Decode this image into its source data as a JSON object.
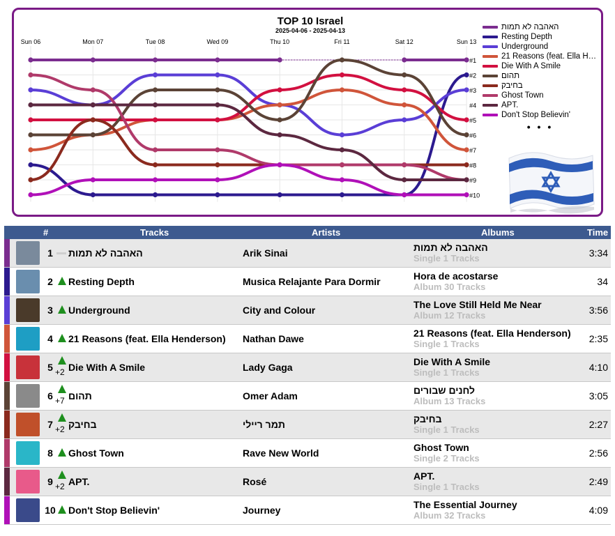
{
  "chart_data": {
    "type": "line",
    "title": "TOP 10 Israel",
    "subtitle": "2025-04-06 - 2025-04-13",
    "x": [
      "Sun 06",
      "Mon 07",
      "Tue 08",
      "Wed 09",
      "Thu 10",
      "Fri 11",
      "Sat 12",
      "Sun 13"
    ],
    "rank_labels": [
      "#1",
      "#2",
      "#3",
      "#4",
      "#5",
      "#6",
      "#7",
      "#8",
      "#9",
      "#10"
    ],
    "ylim": [
      1,
      10
    ],
    "legend_more": "• • •",
    "series": [
      {
        "name": "האהבה לא תמות",
        "color": "#7b2d8f",
        "values": [
          1,
          1,
          1,
          1,
          1,
          null,
          1,
          1
        ]
      },
      {
        "name": "Resting Depth",
        "color": "#2c1a8f",
        "values": [
          8,
          10,
          10,
          10,
          10,
          10,
          10,
          2
        ]
      },
      {
        "name": "Underground",
        "color": "#5a3ed6",
        "values": [
          3,
          4,
          2,
          2,
          4,
          6,
          5,
          3
        ]
      },
      {
        "name": "21 Reasons (feat. Ella Henderson)",
        "color": "#d0553a",
        "values": [
          7,
          6,
          5,
          5,
          4,
          3,
          4,
          7
        ]
      },
      {
        "name": "Die With A Smile",
        "color": "#d21040",
        "values": [
          5,
          5,
          5,
          5,
          3,
          2,
          3,
          5
        ]
      },
      {
        "name": "תהום",
        "color": "#5b4336",
        "values": [
          6,
          6,
          3,
          3,
          5,
          1,
          2,
          6
        ]
      },
      {
        "name": "בחיבק",
        "color": "#8b2a1e",
        "values": [
          9,
          5,
          8,
          8,
          8,
          8,
          8,
          8
        ]
      },
      {
        "name": "Ghost Town",
        "color": "#b03a6a",
        "values": [
          2,
          3,
          7,
          7,
          8,
          8,
          8,
          9
        ]
      },
      {
        "name": "APT.",
        "color": "#5c2840",
        "values": [
          4,
          4,
          4,
          4,
          6,
          7,
          9,
          9
        ]
      },
      {
        "name": "Don't Stop Believin'",
        "color": "#b010b8",
        "values": [
          10,
          9,
          9,
          9,
          8,
          9,
          10,
          10
        ]
      }
    ]
  },
  "table": {
    "headers": {
      "rank": "#",
      "tracks": "Tracks",
      "artists": "Artists",
      "albums": "Albums",
      "time": "Time"
    },
    "rows": [
      {
        "rank": "1",
        "trend": "same",
        "delta": "",
        "track": "האהבה לא תמות",
        "artist": "Arik Sinai",
        "album": "האהבה לא תמות",
        "album_sub": "Single 1 Tracks",
        "time": "3:34",
        "bar": "#7b2d8f",
        "cover": "#7a8a9c"
      },
      {
        "rank": "2",
        "trend": "up",
        "delta": "",
        "track": "Resting Depth",
        "artist": "Musica Relajante Para Dormir",
        "album": "Hora de acostarse",
        "album_sub": "Album 30 Tracks",
        "time": "34",
        "bar": "#2c1a8f",
        "cover": "#6a8eae"
      },
      {
        "rank": "3",
        "trend": "up",
        "delta": "",
        "track": "Underground",
        "artist": "City and Colour",
        "album": "The Love Still Held Me Near",
        "album_sub": "Album 12 Tracks",
        "time": "3:56",
        "bar": "#5a3ed6",
        "cover": "#4a3a2a"
      },
      {
        "rank": "4",
        "trend": "up",
        "delta": "",
        "track": "21 Reasons (feat. Ella Henderson)",
        "artist": "Nathan Dawe",
        "album": "21 Reasons (feat. Ella Henderson)",
        "album_sub": "Single 1 Tracks",
        "time": "2:35",
        "bar": "#d0553a",
        "cover": "#1e9ec4"
      },
      {
        "rank": "5",
        "trend": "up",
        "delta": "+2",
        "track": "Die With A Smile",
        "artist": "Lady Gaga",
        "album": "Die With A Smile",
        "album_sub": "Single 1 Tracks",
        "time": "4:10",
        "bar": "#d21040",
        "cover": "#c8323a"
      },
      {
        "rank": "6",
        "trend": "up",
        "delta": "+7",
        "track": "תהום",
        "artist": "Omer Adam",
        "album": "לחנים שבורים",
        "album_sub": "Album 13 Tracks",
        "time": "3:05",
        "bar": "#5b4336",
        "cover": "#8a8a8a"
      },
      {
        "rank": "7",
        "trend": "up",
        "delta": "+2",
        "track": "בחיבק",
        "artist": "תמר ריילי",
        "album": "בחיבק",
        "album_sub": "Single 1 Tracks",
        "time": "2:27",
        "bar": "#8b2a1e",
        "cover": "#c0502a"
      },
      {
        "rank": "8",
        "trend": "up",
        "delta": "",
        "track": "Ghost Town",
        "artist": "Rave New World",
        "album": "Ghost Town",
        "album_sub": "Single 2 Tracks",
        "time": "2:56",
        "bar": "#b03a6a",
        "cover": "#2ab6c8"
      },
      {
        "rank": "9",
        "trend": "up",
        "delta": "+2",
        "track": "APT.",
        "artist": "Rosé",
        "album": "APT.",
        "album_sub": "Single 1 Tracks",
        "time": "2:49",
        "bar": "#5c2840",
        "cover": "#e85a8a"
      },
      {
        "rank": "10",
        "trend": "up",
        "delta": "",
        "track": "Don't Stop Believin'",
        "artist": "Journey",
        "album": "The Essential Journey",
        "album_sub": "Album 32 Tracks",
        "time": "4:09",
        "bar": "#b010b8",
        "cover": "#3a4a8a"
      }
    ]
  }
}
